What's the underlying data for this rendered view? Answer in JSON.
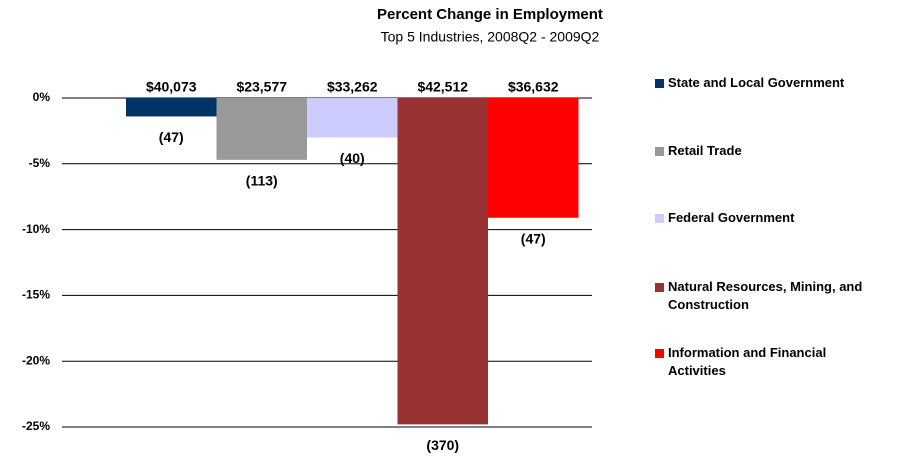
{
  "chart_data": {
    "type": "bar",
    "title": "Percent Change in Employment",
    "subtitle": "Top 5 Industries, 2008Q2 - 2009Q2",
    "ylim": [
      -25,
      0
    ],
    "yticks": [
      {
        "value": 0,
        "label": "0%"
      },
      {
        "value": -5,
        "label": "-5%"
      },
      {
        "value": -10,
        "label": "-10%"
      },
      {
        "value": -15,
        "label": "-15%"
      },
      {
        "value": -20,
        "label": "-20%"
      },
      {
        "value": -25,
        "label": "-25%"
      }
    ],
    "grid": true,
    "legend": "right",
    "series": [
      {
        "name": "State and Local Government",
        "color": "#003366",
        "values": [
          -1.4
        ],
        "wage_labels": [
          "$40,073"
        ],
        "change_labels": [
          "(47)"
        ]
      },
      {
        "name": "Retail Trade",
        "color": "#999999",
        "values": [
          -4.7
        ],
        "wage_labels": [
          "$23,577"
        ],
        "change_labels": [
          "(113)"
        ]
      },
      {
        "name": "Federal Government",
        "color": "#ccccff",
        "values": [
          -3.0
        ],
        "wage_labels": [
          "$33,262"
        ],
        "change_labels": [
          "(40)"
        ]
      },
      {
        "name": "Natural Resources, Mining, and Construction",
        "color": "#993333",
        "values": [
          -24.8
        ],
        "wage_labels": [
          "$42,512"
        ],
        "change_labels": [
          "(370)"
        ]
      },
      {
        "name": "Information and Financial Activities",
        "color": "#ff0000",
        "values": [
          -9.1
        ],
        "wage_labels": [
          "$36,632"
        ],
        "change_labels": [
          "(47)"
        ]
      }
    ]
  }
}
